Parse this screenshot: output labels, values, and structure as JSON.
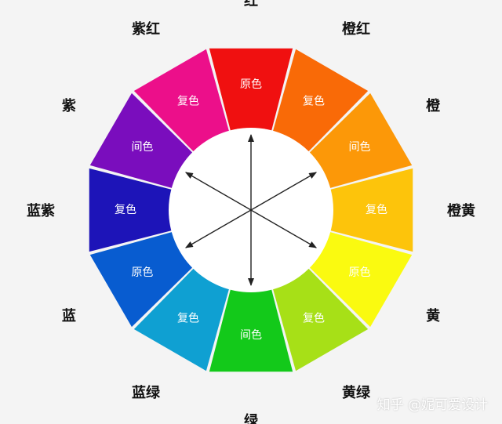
{
  "segments": [
    {
      "name": "红",
      "type": "原色",
      "color": "#f01010",
      "text_color": "#ffffff"
    },
    {
      "name": "橙红",
      "type": "复色",
      "color": "#f96a07",
      "text_color": "#ffffff"
    },
    {
      "name": "橙",
      "type": "间色",
      "color": "#fc9808",
      "text_color": "#ffffff"
    },
    {
      "name": "橙黄",
      "type": "复色",
      "color": "#fdc40b",
      "text_color": "#ffffff"
    },
    {
      "name": "黄",
      "type": "原色",
      "color": "#fafa10",
      "text_color": "#ffffff"
    },
    {
      "name": "黄绿",
      "type": "复色",
      "color": "#a7e017",
      "text_color": "#ffffff"
    },
    {
      "name": "绿",
      "type": "间色",
      "color": "#13c91a",
      "text_color": "#ffffff"
    },
    {
      "name": "蓝绿",
      "type": "复色",
      "color": "#0fa0d2",
      "text_color": "#ffffff"
    },
    {
      "name": "蓝",
      "type": "原色",
      "color": "#085cd0",
      "text_color": "#ffffff"
    },
    {
      "name": "蓝紫",
      "type": "复色",
      "color": "#1d14b8",
      "text_color": "#ffffff"
    },
    {
      "name": "紫",
      "type": "间色",
      "color": "#7a0dbd",
      "text_color": "#ffffff"
    },
    {
      "name": "紫红",
      "type": "复色",
      "color": "#ec0f8a",
      "text_color": "#ffffff"
    }
  ],
  "center_fill": "#ffffff",
  "arrow_color": "#222222",
  "watermark": "知乎 @妮可爱设计"
}
